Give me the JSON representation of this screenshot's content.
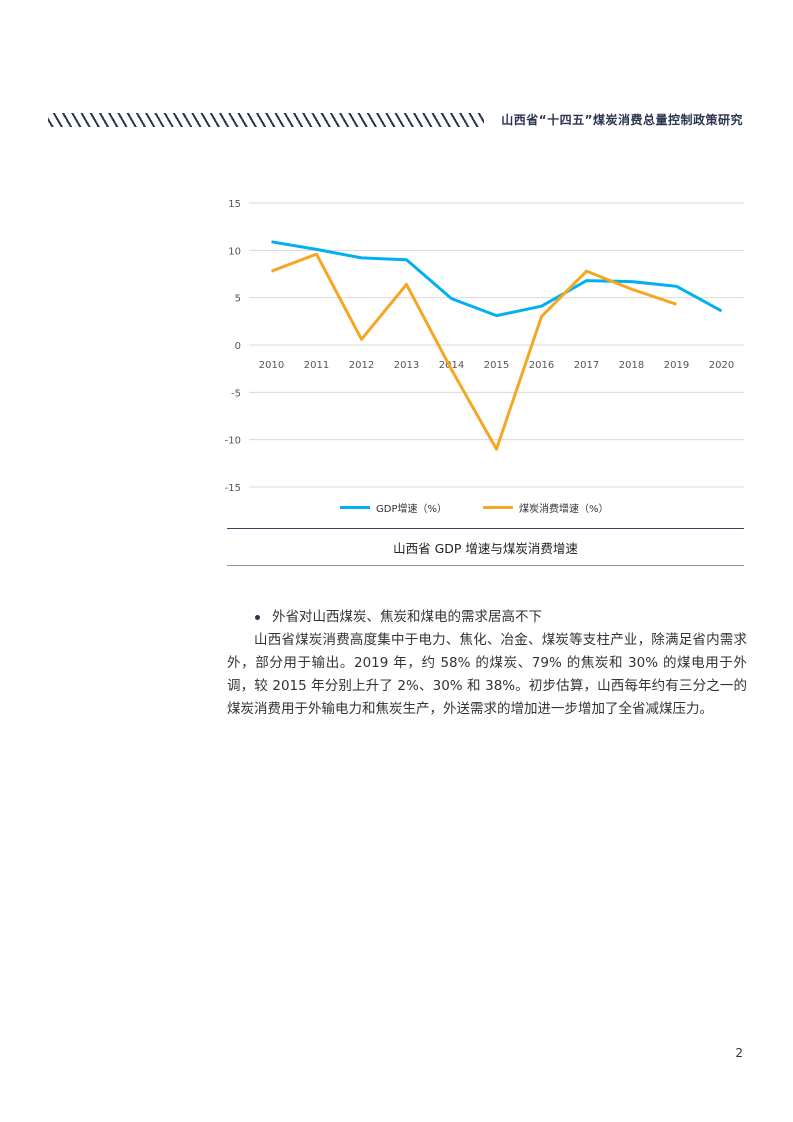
{
  "header": {
    "title": "山西省“十四五”煤炭消费总量控制政策研究"
  },
  "chart_data": {
    "type": "line",
    "title": "山西省 GDP 增速与煤炭消费增速",
    "x": [
      "2010",
      "2011",
      "2012",
      "2013",
      "2014",
      "2015",
      "2016",
      "2017",
      "2018",
      "2019",
      "2020"
    ],
    "series": [
      {
        "name": "GDP增速（%）",
        "color": "#00b0f0",
        "values": [
          10.9,
          10.1,
          9.2,
          9.0,
          4.9,
          3.1,
          4.1,
          6.8,
          6.7,
          6.2,
          3.6
        ]
      },
      {
        "name": "煤炭消费增速（%）",
        "color": "#f5a623",
        "values": [
          7.8,
          9.6,
          0.6,
          6.4,
          -2.6,
          -11.0,
          3.0,
          7.8,
          5.9,
          4.3,
          null
        ]
      }
    ],
    "yticks": [
      15,
      10,
      5,
      0,
      -5,
      -10,
      -15
    ],
    "ylim": [
      -15,
      15
    ],
    "xlabel": "",
    "ylabel": "",
    "grid": true,
    "legend_position": "bottom"
  },
  "caption": "山西省 GDP 增速与煤炭消费增速",
  "bullet": "外省对山西煤炭、焦炭和煤电的需求居高不下",
  "paragraph": "山西省煤炭消费高度集中于电力、焦化、冶金、煤炭等支柱产业，除满足省内需求外，部分用于输出。2019 年，约 58% 的煤炭、79% 的焦炭和 30% 的煤电用于外调，较 2015 年分别上升了 2%、30% 和 38%。初步估算，山西每年约有三分之一的煤炭消费用于外输电力和焦炭生产，外送需求的增加进一步增加了全省减煤压力。",
  "page_number": "2"
}
